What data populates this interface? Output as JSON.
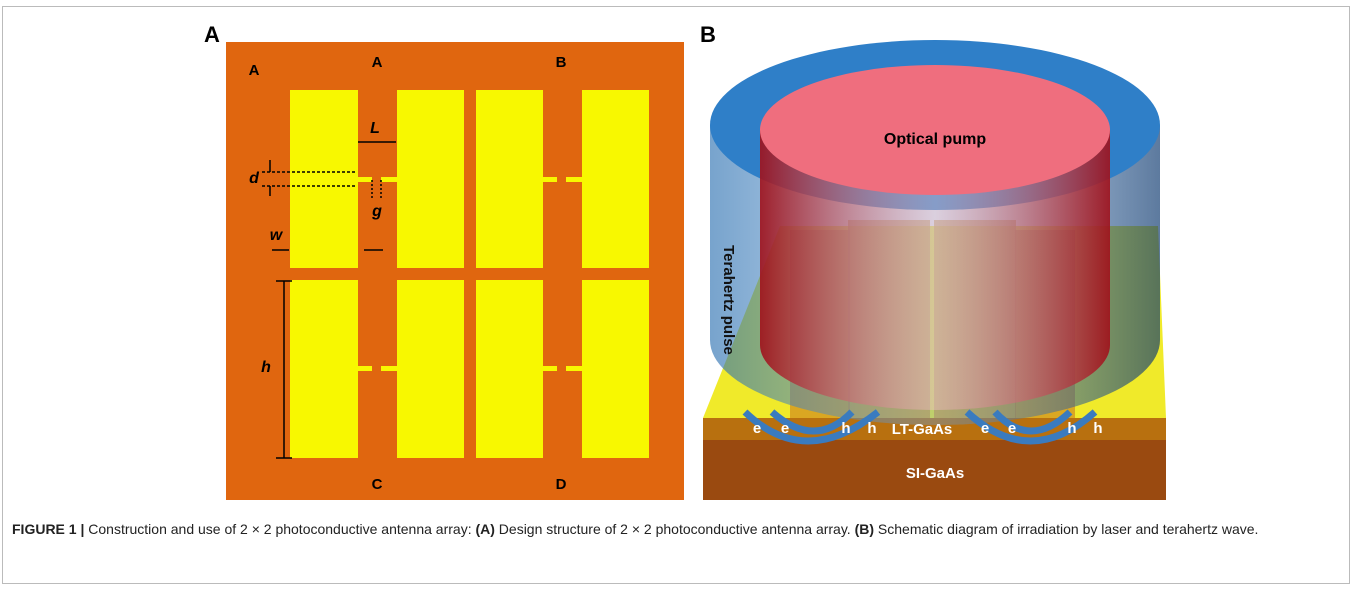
{
  "panel_a": {
    "label": "A",
    "corner": "A",
    "quadrants": [
      "A",
      "B",
      "C",
      "D"
    ],
    "dims": {
      "L": "L",
      "d": "d",
      "g": "g",
      "w": "w",
      "h": "h"
    }
  },
  "panel_b": {
    "label": "B",
    "pump": "Optical pump",
    "pulse": "Terahertz pulse",
    "carriers": [
      "e",
      "e",
      "h",
      "h",
      "e",
      "e",
      "h",
      "h"
    ],
    "layers": [
      "LT-GaAs",
      "SI-GaAs"
    ]
  },
  "caption": {
    "figure": "FIGURE 1 |",
    "parts": [
      "Construction and use of 2 × 2 photoconductive antenna array: ",
      "(A)",
      " Design structure of 2 × 2 photoconductive antenna array. ",
      "(B)",
      " Schematic diagram of irradiation by laser and terahertz wave."
    ]
  }
}
